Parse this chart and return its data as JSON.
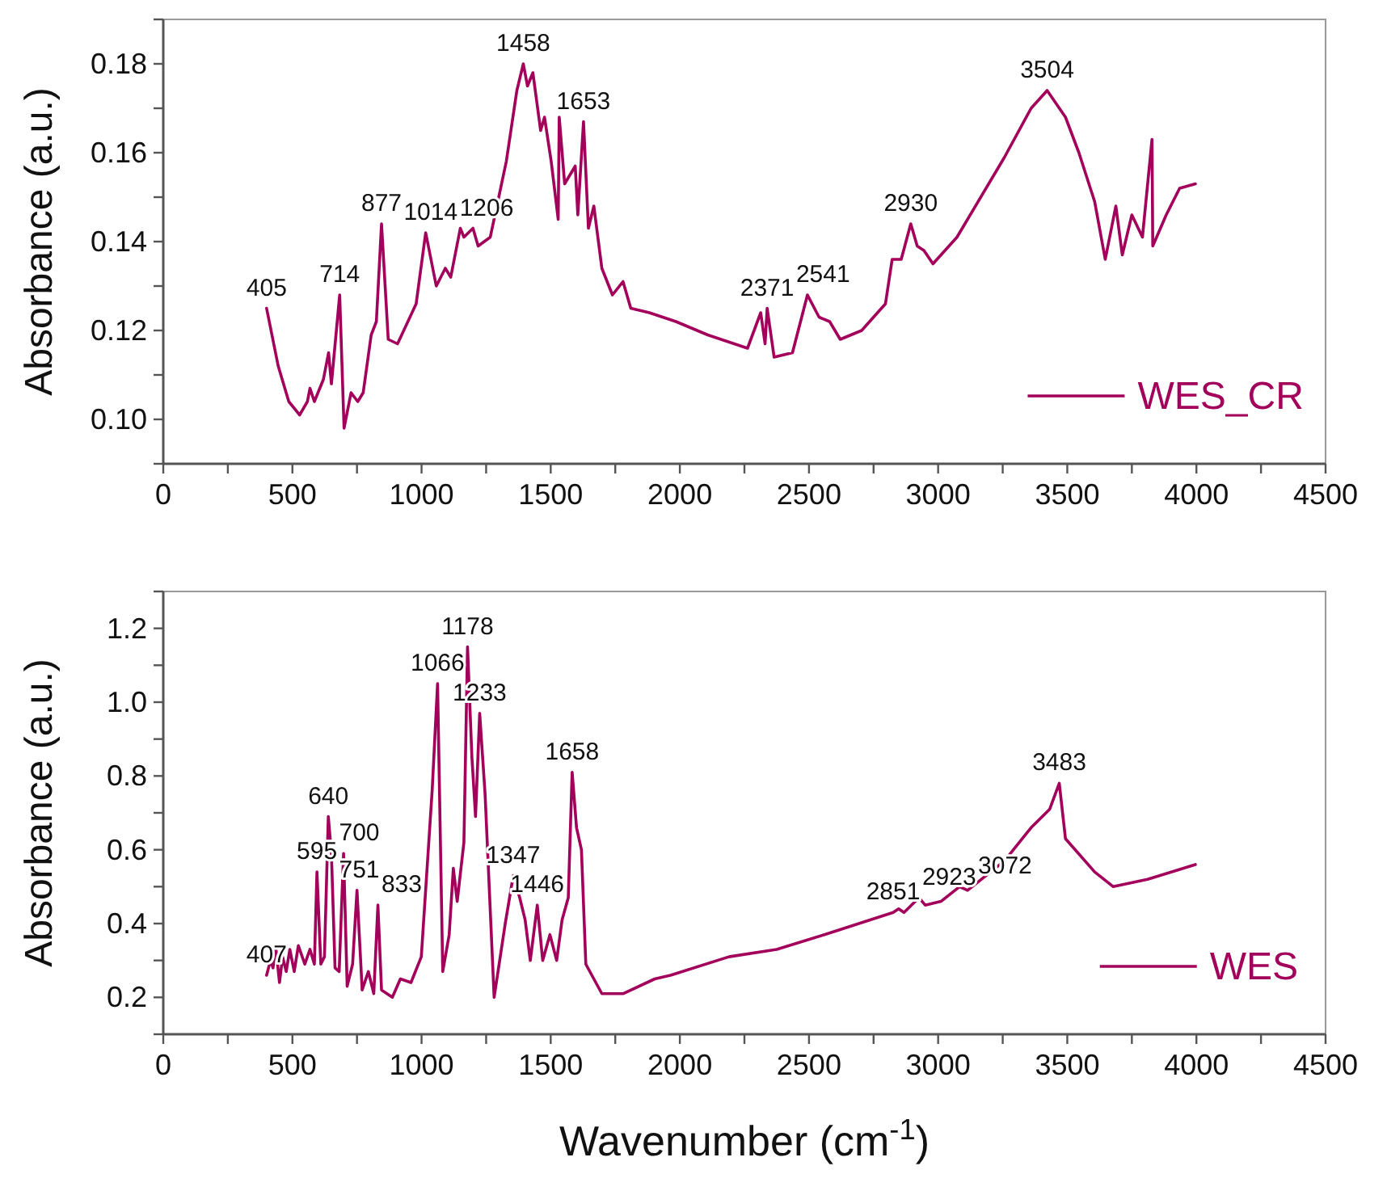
{
  "chart_data": [
    {
      "type": "line",
      "ylabel": "Absorbance (a.u.)",
      "xlim": [
        0,
        4500
      ],
      "xticks": [
        0,
        {
          "value": 250,
          "label": null
        },
        500,
        {
          "value": 750,
          "label": null
        },
        1000,
        {
          "value": 1250,
          "label": null
        },
        1500,
        {
          "value": 1750,
          "label": null
        },
        2000,
        {
          "value": 2250,
          "label": null
        },
        2500,
        {
          "value": 2750,
          "label": null
        },
        3000,
        {
          "value": 3250,
          "label": null
        },
        3500,
        {
          "value": 3750,
          "label": null
        },
        4000,
        {
          "value": 4250,
          "label": null
        },
        4500
      ],
      "ylim": [
        0.09,
        0.19
      ],
      "yticks": [
        {
          "value": 0.09,
          "label": null
        },
        {
          "value": 0.1,
          "label": "0.10"
        },
        {
          "value": 0.11,
          "label": null
        },
        {
          "value": 0.12,
          "label": "0.12"
        },
        {
          "value": 0.13,
          "label": null
        },
        {
          "value": 0.14,
          "label": "0.14"
        },
        {
          "value": 0.15,
          "label": null
        },
        {
          "value": 0.16,
          "label": "0.16"
        },
        {
          "value": 0.17,
          "label": null
        },
        {
          "value": 0.18,
          "label": "0.18"
        },
        {
          "value": 0.19,
          "label": null
        }
      ],
      "grid": false,
      "legend": "bottom right",
      "line_style": "solid",
      "marker": "none",
      "series": [
        {
          "name": "WES_CR",
          "color": "#a2005a",
          "x": [
            400,
            445,
            486,
            528,
            558,
            568,
            585,
            620,
            640,
            651,
            683,
            700,
            727,
            753,
            774,
            805,
            825,
            845,
            871,
            907,
            979,
            1016,
            1057,
            1092,
            1113,
            1150,
            1164,
            1199,
            1219,
            1266,
            1328,
            1369,
            1394,
            1410,
            1431,
            1461,
            1476,
            1502,
            1529,
            1533,
            1554,
            1595,
            1605,
            1627,
            1646,
            1667,
            1698,
            1739,
            1780,
            1810,
            1882,
            1985,
            2108,
            2262,
            2313,
            2330,
            2338,
            2365,
            2436,
            2494,
            2539,
            2580,
            2621,
            2704,
            2796,
            2822,
            2857,
            2894,
            2919,
            2945,
            2980,
            3073,
            3257,
            3360,
            3422,
            3493,
            3545,
            3606,
            3647,
            3688,
            3713,
            3750,
            3791,
            3828,
            3831,
            3883,
            3935,
            3996
          ],
          "values": [
            0.125,
            0.112,
            0.104,
            0.101,
            0.104,
            0.107,
            0.104,
            0.109,
            0.115,
            0.108,
            0.128,
            0.098,
            0.106,
            0.104,
            0.106,
            0.119,
            0.122,
            0.144,
            0.118,
            0.117,
            0.126,
            0.142,
            0.13,
            0.134,
            0.132,
            0.143,
            0.141,
            0.143,
            0.139,
            0.141,
            0.158,
            0.174,
            0.18,
            0.175,
            0.178,
            0.165,
            0.168,
            0.158,
            0.145,
            0.168,
            0.153,
            0.157,
            0.146,
            0.167,
            0.143,
            0.148,
            0.134,
            0.128,
            0.131,
            0.125,
            0.124,
            0.122,
            0.119,
            0.116,
            0.124,
            0.117,
            0.125,
            0.114,
            0.115,
            0.128,
            0.123,
            0.122,
            0.118,
            0.12,
            0.126,
            0.136,
            0.136,
            0.144,
            0.139,
            0.138,
            0.135,
            0.141,
            0.159,
            0.17,
            0.174,
            0.168,
            0.16,
            0.149,
            0.136,
            0.148,
            0.137,
            0.146,
            0.141,
            0.163,
            0.139,
            0.146,
            0.152,
            0.153
          ]
        }
      ],
      "annotations": [
        {
          "text": "405",
          "x": 400,
          "y": 0.125
        },
        {
          "text": "714",
          "x": 683,
          "y": 0.128
        },
        {
          "text": "877",
          "x": 845,
          "y": 0.144
        },
        {
          "text": "1014",
          "x": 1016,
          "y": 0.142
        },
        {
          "text": "1206",
          "x": 1199,
          "y": 0.143
        },
        {
          "text": "1458",
          "x": 1394,
          "y": 0.18
        },
        {
          "text": "1653",
          "x": 1627,
          "y": 0.167
        },
        {
          "text": "2371",
          "x": 2338,
          "y": 0.125
        },
        {
          "text": "2541",
          "x": 2494,
          "y": 0.128
        },
        {
          "text": "2930",
          "x": 2894,
          "y": 0.144
        },
        {
          "text": "3504",
          "x": 3422,
          "y": 0.174
        }
      ]
    },
    {
      "type": "line",
      "xlabel": "Wavenumber (cm$^{-1}$)",
      "ylabel": "Absorbance (a.u.)",
      "xlim": [
        0,
        4500
      ],
      "xticks": [
        0,
        {
          "value": 250,
          "label": null
        },
        500,
        {
          "value": 750,
          "label": null
        },
        1000,
        {
          "value": 1250,
          "label": null
        },
        1500,
        {
          "value": 1750,
          "label": null
        },
        2000,
        {
          "value": 2250,
          "label": null
        },
        2500,
        {
          "value": 2750,
          "label": null
        },
        3000,
        {
          "value": 3250,
          "label": null
        },
        3500,
        {
          "value": 3750,
          "label": null
        },
        4000,
        {
          "value": 4250,
          "label": null
        },
        4500
      ],
      "ylim": [
        0.1,
        1.3
      ],
      "yticks": [
        {
          "value": 0.1,
          "label": null
        },
        0.2,
        {
          "value": 0.3,
          "label": null
        },
        0.4,
        {
          "value": 0.5,
          "label": null
        },
        0.6,
        {
          "value": 0.7,
          "label": null
        },
        0.8,
        {
          "value": 0.9,
          "label": null
        },
        {
          "value": 1,
          "label": "1.0"
        },
        {
          "value": 1.1,
          "label": null
        },
        1.2,
        {
          "value": 1.3,
          "label": null
        }
      ],
      "grid": false,
      "legend": "bottom right",
      "line_style": "solid",
      "marker": "none",
      "series": [
        {
          "name": "WES",
          "color": "#a2005a",
          "x": [
            400,
            415,
            425,
            435,
            450,
            462,
            476,
            490,
            507,
            523,
            548,
            568,
            585,
            595,
            610,
            624,
            639,
            651,
            665,
            681,
            698,
            712,
            733,
            750,
            770,
            794,
            815,
            831,
            845,
            887,
            918,
            959,
            999,
            1041,
            1062,
            1082,
            1107,
            1123,
            1138,
            1164,
            1178,
            1195,
            1209,
            1225,
            1246,
            1281,
            1324,
            1355,
            1380,
            1401,
            1421,
            1448,
            1469,
            1497,
            1523,
            1544,
            1568,
            1583,
            1600,
            1619,
            1636,
            1698,
            1780,
            1903,
            1964,
            2190,
            2375,
            2560,
            2826,
            2847,
            2868,
            2926,
            2950,
            3011,
            3083,
            3114,
            3257,
            3360,
            3432,
            3469,
            3493,
            3606,
            3678,
            3811,
            3996
          ],
          "values": [
            0.26,
            0.3,
            0.28,
            0.34,
            0.24,
            0.31,
            0.27,
            0.33,
            0.27,
            0.34,
            0.29,
            0.33,
            0.29,
            0.54,
            0.29,
            0.31,
            0.69,
            0.59,
            0.28,
            0.27,
            0.59,
            0.23,
            0.29,
            0.49,
            0.22,
            0.27,
            0.21,
            0.45,
            0.22,
            0.2,
            0.25,
            0.24,
            0.31,
            0.76,
            1.05,
            0.27,
            0.37,
            0.55,
            0.46,
            0.62,
            1.15,
            0.85,
            0.69,
            0.97,
            0.75,
            0.2,
            0.4,
            0.53,
            0.47,
            0.41,
            0.3,
            0.45,
            0.3,
            0.37,
            0.3,
            0.41,
            0.47,
            0.81,
            0.66,
            0.6,
            0.29,
            0.21,
            0.21,
            0.25,
            0.26,
            0.31,
            0.33,
            0.37,
            0.43,
            0.44,
            0.43,
            0.47,
            0.45,
            0.46,
            0.5,
            0.49,
            0.57,
            0.66,
            0.71,
            0.78,
            0.63,
            0.54,
            0.5,
            0.52,
            0.56
          ]
        }
      ],
      "annotations": [
        {
          "text": "407",
          "x": 400,
          "y": 0.26
        },
        {
          "text": "595",
          "x": 595,
          "y": 0.54
        },
        {
          "text": "640",
          "x": 639,
          "y": 0.69
        },
        {
          "text": "700",
          "x": 698,
          "y": 0.59
        },
        {
          "text": "751",
          "x": 750,
          "y": 0.49
        },
        {
          "text": "833",
          "x": 831,
          "y": 0.45
        },
        {
          "text": "1066",
          "x": 1062,
          "y": 1.05
        },
        {
          "text": "1178",
          "x": 1178,
          "y": 1.15
        },
        {
          "text": "1233",
          "x": 1225,
          "y": 0.97
        },
        {
          "text": "1347",
          "x": 1355,
          "y": 0.53
        },
        {
          "text": "1446",
          "x": 1448,
          "y": 0.45
        },
        {
          "text": "1658",
          "x": 1583,
          "y": 0.81
        },
        {
          "text": "2851",
          "x": 2826,
          "y": 0.43
        },
        {
          "text": "2923",
          "x": 2926,
          "y": 0.47
        },
        {
          "text": "3072",
          "x": 3083,
          "y": 0.5
        },
        {
          "text": "3483",
          "x": 3469,
          "y": 0.78
        }
      ]
    }
  ]
}
